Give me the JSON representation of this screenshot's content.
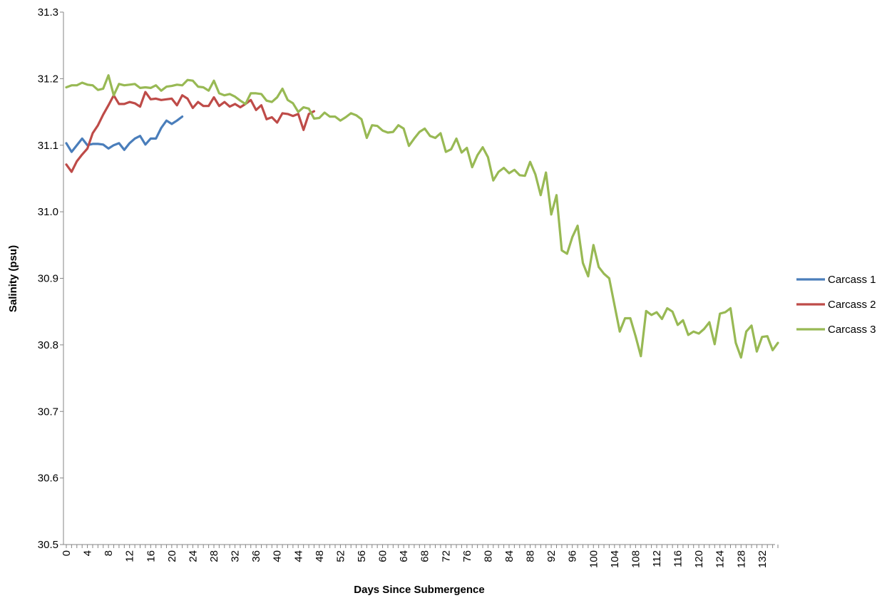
{
  "chart_data": {
    "type": "line",
    "title": "",
    "xlabel": "Days Since Submergence",
    "ylabel": "Salinity (psu)",
    "xlim": [
      0,
      135
    ],
    "ylim": [
      30.5,
      31.3
    ],
    "grid": false,
    "legend_position": "right",
    "x_ticks": [
      "0",
      "4",
      "8",
      "12",
      "16",
      "20",
      "24",
      "28",
      "32",
      "36",
      "40",
      "44",
      "48",
      "52",
      "56",
      "60",
      "64",
      "68",
      "72",
      "76",
      "80",
      "84",
      "88",
      "92",
      "96",
      "100",
      "104",
      "108",
      "112",
      "116",
      "120",
      "124",
      "128",
      "132"
    ],
    "y_ticks": [
      "30.5",
      "30.6",
      "30.7",
      "30.8",
      "30.9",
      "31.0",
      "31.1",
      "31.2",
      "31.3"
    ],
    "series": [
      {
        "name": "Carcass 1",
        "color": "#4a7ebb",
        "x": [
          0,
          1,
          2,
          3,
          4,
          5,
          6,
          7,
          8,
          9,
          10,
          11,
          12,
          13,
          14,
          15,
          16,
          17,
          18,
          19,
          20,
          21,
          22
        ],
        "values": [
          31.103,
          31.09,
          31.1,
          31.11,
          31.1,
          31.102,
          31.102,
          31.101,
          31.095,
          31.1,
          31.103,
          31.093,
          31.103,
          31.11,
          31.114,
          31.101,
          31.11,
          31.11,
          31.126,
          31.137,
          31.132,
          31.137,
          31.143
        ]
      },
      {
        "name": "Carcass 2",
        "color": "#be4b48",
        "x": [
          0,
          1,
          2,
          3,
          4,
          5,
          6,
          7,
          8,
          9,
          10,
          11,
          12,
          13,
          14,
          15,
          16,
          17,
          18,
          19,
          20,
          21,
          22,
          23,
          24,
          25,
          26,
          27,
          28,
          29,
          30,
          31,
          32,
          33,
          34,
          35,
          36,
          37,
          38,
          39,
          40,
          41,
          42,
          43,
          44,
          45,
          46,
          47
        ],
        "values": [
          31.071,
          31.06,
          31.076,
          31.086,
          31.095,
          31.118,
          31.13,
          31.146,
          31.16,
          31.175,
          31.162,
          31.162,
          31.165,
          31.163,
          31.158,
          31.18,
          31.169,
          31.17,
          31.168,
          31.169,
          31.17,
          31.16,
          31.175,
          31.17,
          31.156,
          31.165,
          31.159,
          31.159,
          31.172,
          31.159,
          31.165,
          31.158,
          31.162,
          31.157,
          31.162,
          31.168,
          31.153,
          31.16,
          31.139,
          31.142,
          31.134,
          31.148,
          31.147,
          31.144,
          31.147,
          31.123,
          31.147,
          31.151
        ]
      },
      {
        "name": "Carcass 3",
        "color": "#98b954",
        "x": [
          0,
          1,
          2,
          3,
          4,
          5,
          6,
          7,
          8,
          9,
          10,
          11,
          12,
          13,
          14,
          15,
          16,
          17,
          18,
          19,
          20,
          21,
          22,
          23,
          24,
          25,
          26,
          27,
          28,
          29,
          30,
          31,
          32,
          33,
          34,
          35,
          36,
          37,
          38,
          39,
          40,
          41,
          42,
          43,
          44,
          45,
          46,
          47,
          48,
          49,
          50,
          51,
          52,
          53,
          54,
          55,
          56,
          57,
          58,
          59,
          60,
          61,
          62,
          63,
          64,
          65,
          66,
          67,
          68,
          69,
          70,
          71,
          72,
          73,
          74,
          75,
          76,
          77,
          78,
          79,
          80,
          81,
          82,
          83,
          84,
          85,
          86,
          87,
          88,
          89,
          90,
          91,
          92,
          93,
          94,
          95,
          96,
          97,
          98,
          99,
          100,
          101,
          102,
          103,
          104,
          105,
          106,
          107,
          108,
          109,
          110,
          111,
          112,
          113,
          114,
          115,
          116,
          117,
          118,
          119,
          120,
          121,
          122,
          123,
          124,
          125,
          126,
          127,
          128,
          129,
          130,
          131,
          132,
          133,
          134,
          135
        ],
        "values": [
          31.187,
          31.19,
          31.19,
          31.194,
          31.191,
          31.19,
          31.183,
          31.185,
          31.205,
          31.175,
          31.192,
          31.19,
          31.191,
          31.192,
          31.186,
          31.187,
          31.186,
          31.19,
          31.182,
          31.188,
          31.189,
          31.191,
          31.19,
          31.198,
          31.197,
          31.188,
          31.187,
          31.182,
          31.197,
          31.178,
          31.175,
          31.177,
          31.173,
          31.167,
          31.162,
          31.178,
          31.178,
          31.177,
          31.167,
          31.165,
          31.172,
          31.185,
          31.168,
          31.163,
          31.15,
          31.157,
          31.155,
          31.14,
          31.141,
          31.149,
          31.143,
          31.143,
          31.137,
          31.142,
          31.148,
          31.145,
          31.139,
          31.111,
          31.13,
          31.129,
          31.122,
          31.119,
          31.12,
          31.13,
          31.125,
          31.099,
          31.11,
          31.12,
          31.125,
          31.114,
          31.111,
          31.118,
          31.09,
          31.094,
          31.11,
          31.089,
          31.096,
          31.067,
          31.085,
          31.097,
          31.082,
          31.047,
          31.06,
          31.066,
          31.058,
          31.063,
          31.055,
          31.054,
          31.075,
          31.056,
          31.025,
          31.059,
          30.996,
          31.025,
          30.942,
          30.937,
          30.962,
          30.979,
          30.923,
          30.903,
          30.95,
          30.917,
          30.907,
          30.9,
          30.86,
          30.82,
          30.84,
          30.84,
          30.813,
          30.783,
          30.851,
          30.845,
          30.849,
          30.839,
          30.855,
          30.85,
          30.83,
          30.837,
          30.815,
          30.82,
          30.817,
          30.824,
          30.834,
          30.801,
          30.847,
          30.849,
          30.855,
          30.803,
          30.781,
          30.82,
          30.829,
          30.79,
          30.812,
          30.813,
          30.792,
          30.803
        ]
      }
    ]
  }
}
